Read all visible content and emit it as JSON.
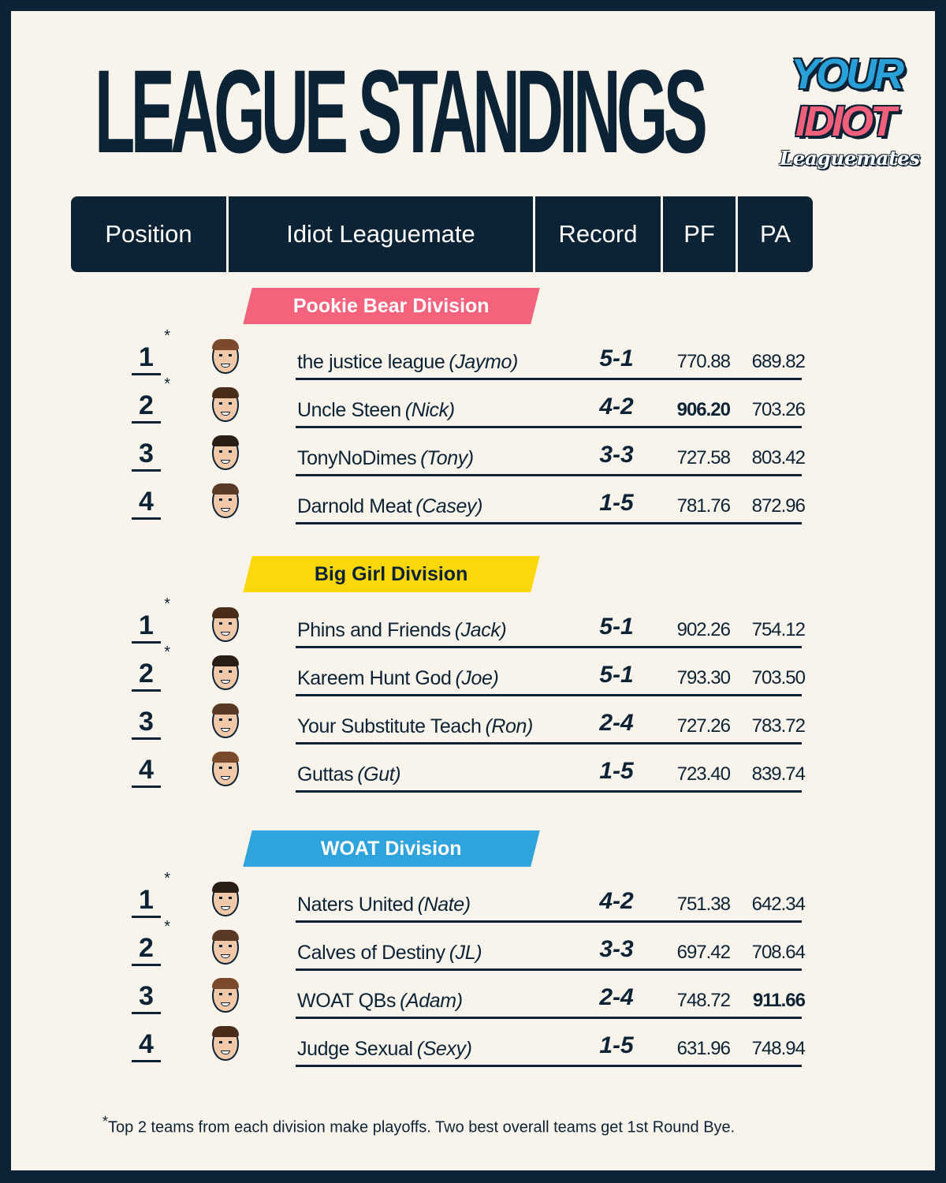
{
  "title": "LEAGUE STANDINGS",
  "logo": {
    "line1": "YOUR",
    "line2": "IDIOT",
    "line3": "Leaguemates"
  },
  "columns": [
    "Position",
    "Idiot Leaguemate",
    "Record",
    "PF",
    "PA"
  ],
  "colors": {
    "navy": "#0c2235",
    "cream": "#f8f4eb",
    "pink": "#f4637b",
    "yellow": "#fcd80a",
    "blue": "#2ea3dc"
  },
  "divisions": [
    {
      "name": "Pookie Bear Division",
      "color": "#f4637b",
      "textColor": "#ffffff",
      "teams": [
        {
          "pos": "1",
          "star": "*",
          "team": "the justice league",
          "owner": "(Jaymo)",
          "record": "5-1",
          "pf": "770.88",
          "pa": "689.82"
        },
        {
          "pos": "2",
          "star": "*",
          "team": "Uncle Steen",
          "owner": "(Nick)",
          "record": "4-2",
          "pf": "906.20",
          "pa": "703.26",
          "pf_bold": true
        },
        {
          "pos": "3",
          "star": "",
          "team": "TonyNoDimes",
          "owner": "(Tony)",
          "record": "3-3",
          "pf": "727.58",
          "pa": "803.42"
        },
        {
          "pos": "4",
          "star": "",
          "team": "Darnold Meat",
          "owner": "(Casey)",
          "record": "1-5",
          "pf": "781.76",
          "pa": "872.96"
        }
      ]
    },
    {
      "name": "Big Girl Division",
      "color": "#fcd80a",
      "textColor": "#0c2235",
      "teams": [
        {
          "pos": "1",
          "star": "*",
          "team": "Phins and Friends",
          "owner": "(Jack)",
          "record": "5-1",
          "pf": "902.26",
          "pa": "754.12"
        },
        {
          "pos": "2",
          "star": "*",
          "team": "Kareem Hunt God",
          "owner": "(Joe)",
          "record": "5-1",
          "pf": "793.30",
          "pa": "703.50"
        },
        {
          "pos": "3",
          "star": "",
          "team": "Your Substitute Teach",
          "owner": "(Ron)",
          "record": "2-4",
          "pf": "727.26",
          "pa": "783.72"
        },
        {
          "pos": "4",
          "star": "",
          "team": "Guttas",
          "owner": "(Gut)",
          "record": "1-5",
          "pf": "723.40",
          "pa": "839.74"
        }
      ]
    },
    {
      "name": "WOAT Division",
      "color": "#2ea3dc",
      "textColor": "#ffffff",
      "teams": [
        {
          "pos": "1",
          "star": "*",
          "team": "Naters United",
          "owner": "(Nate)",
          "record": "4-2",
          "pf": "751.38",
          "pa": "642.34"
        },
        {
          "pos": "2",
          "star": "*",
          "team": "Calves of Destiny",
          "owner": "(JL)",
          "record": "3-3",
          "pf": "697.42",
          "pa": "708.64"
        },
        {
          "pos": "3",
          "star": "",
          "team": "WOAT QBs",
          "owner": "(Adam)",
          "record": "2-4",
          "pf": "748.72",
          "pa": "911.66",
          "pa_bold": true
        },
        {
          "pos": "4",
          "star": "",
          "team": "Judge Sexual",
          "owner": "(Sexy)",
          "record": "1-5",
          "pf": "631.96",
          "pa": "748.94"
        }
      ]
    }
  ],
  "footnote": {
    "star": "*",
    "text": "Top 2 teams from each division make playoffs. Two best overall teams get 1st Round Bye."
  }
}
